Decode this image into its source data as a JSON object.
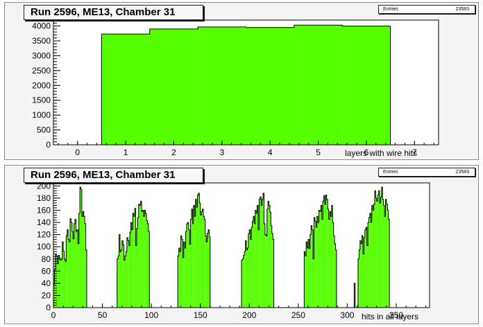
{
  "chart_data": [
    {
      "type": "bar",
      "title": "Run 2596, ME13, Chamber 31",
      "xlabel": "layers with wire hits",
      "ylabel": "",
      "stats": {
        "label": "Entries",
        "value": "23583"
      },
      "xlim": [
        -0.5,
        7.5
      ],
      "ylim": [
        0,
        4200
      ],
      "xticks": [
        0,
        1,
        2,
        3,
        4,
        5,
        6,
        7
      ],
      "yticks": [
        0,
        500,
        1000,
        1500,
        2000,
        2500,
        3000,
        3500,
        4000
      ],
      "categories": [
        1,
        2,
        3,
        4,
        5,
        6
      ],
      "values": [
        3730,
        3900,
        3970,
        3950,
        4030,
        4000
      ],
      "fill": "#55ff00",
      "grid": false
    },
    {
      "type": "bar",
      "title": "Run 2596, ME13, Chamber 31",
      "xlabel": "hits in all layers",
      "ylabel": "",
      "stats": {
        "label": "Entries",
        "value": "23583"
      },
      "xlim": [
        0,
        384
      ],
      "ylim": [
        0,
        205
      ],
      "xticks": [
        0,
        50,
        100,
        150,
        200,
        250,
        300,
        350
      ],
      "yticks": [
        0,
        20,
        40,
        60,
        80,
        100,
        120,
        140,
        160,
        180,
        200
      ],
      "bin_width": 1,
      "fill": "#55ff00",
      "grid": false,
      "groups": [
        {
          "start": 0,
          "values": [
            38,
            62,
            88,
            85,
            72,
            86,
            82,
            78,
            80,
            108,
            93,
            80,
            76,
            118,
            128,
            112,
            108,
            146,
            140,
            125,
            113,
            138,
            145,
            125,
            128,
            105,
            155,
            198,
            194,
            150,
            158,
            150,
            138,
            95
          ]
        },
        {
          "start": 65,
          "values": [
            80,
            85,
            120,
            92,
            95,
            110,
            103,
            78,
            85,
            92,
            115,
            110,
            102,
            124,
            140,
            128,
            155,
            150,
            163,
            102,
            130,
            148,
            170,
            168,
            175,
            158,
            160,
            150,
            160,
            155,
            143,
            138,
            125
          ]
        },
        {
          "start": 127,
          "values": [
            85,
            98,
            92,
            118,
            112,
            82,
            108,
            98,
            125,
            138,
            140,
            128,
            104,
            145,
            162,
            138,
            168,
            150,
            178,
            165,
            185,
            188,
            172,
            152,
            158,
            162,
            150,
            145,
            118,
            108,
            122,
            128,
            116
          ]
        },
        {
          "start": 192,
          "values": [
            78,
            80,
            86,
            92,
            110,
            95,
            98,
            122,
            128,
            112,
            132,
            142,
            150,
            138,
            160,
            155,
            168,
            128,
            178,
            182,
            168,
            178,
            188,
            138,
            120,
            118,
            162,
            175,
            168,
            157,
            135,
            122,
            112
          ]
        },
        {
          "start": 256,
          "values": [
            92,
            85,
            108,
            98,
            112,
            97,
            120,
            135,
            128,
            80,
            148,
            142,
            132,
            150,
            140,
            160,
            158,
            168,
            145,
            175,
            184,
            170,
            185,
            178,
            162,
            145,
            158,
            150,
            168,
            140,
            118,
            105,
            95
          ]
        },
        {
          "start": 311,
          "values": [
            80,
            95,
            110,
            105,
            118,
            88,
            115,
            128,
            132,
            102,
            140,
            148,
            155,
            140,
            168,
            160,
            170,
            192,
            180,
            175,
            185,
            192,
            172,
            182,
            198,
            178,
            168,
            150,
            178,
            170,
            160,
            145
          ]
        }
      ],
      "spikes": [
        {
          "x": 307,
          "value": 40
        }
      ]
    }
  ]
}
